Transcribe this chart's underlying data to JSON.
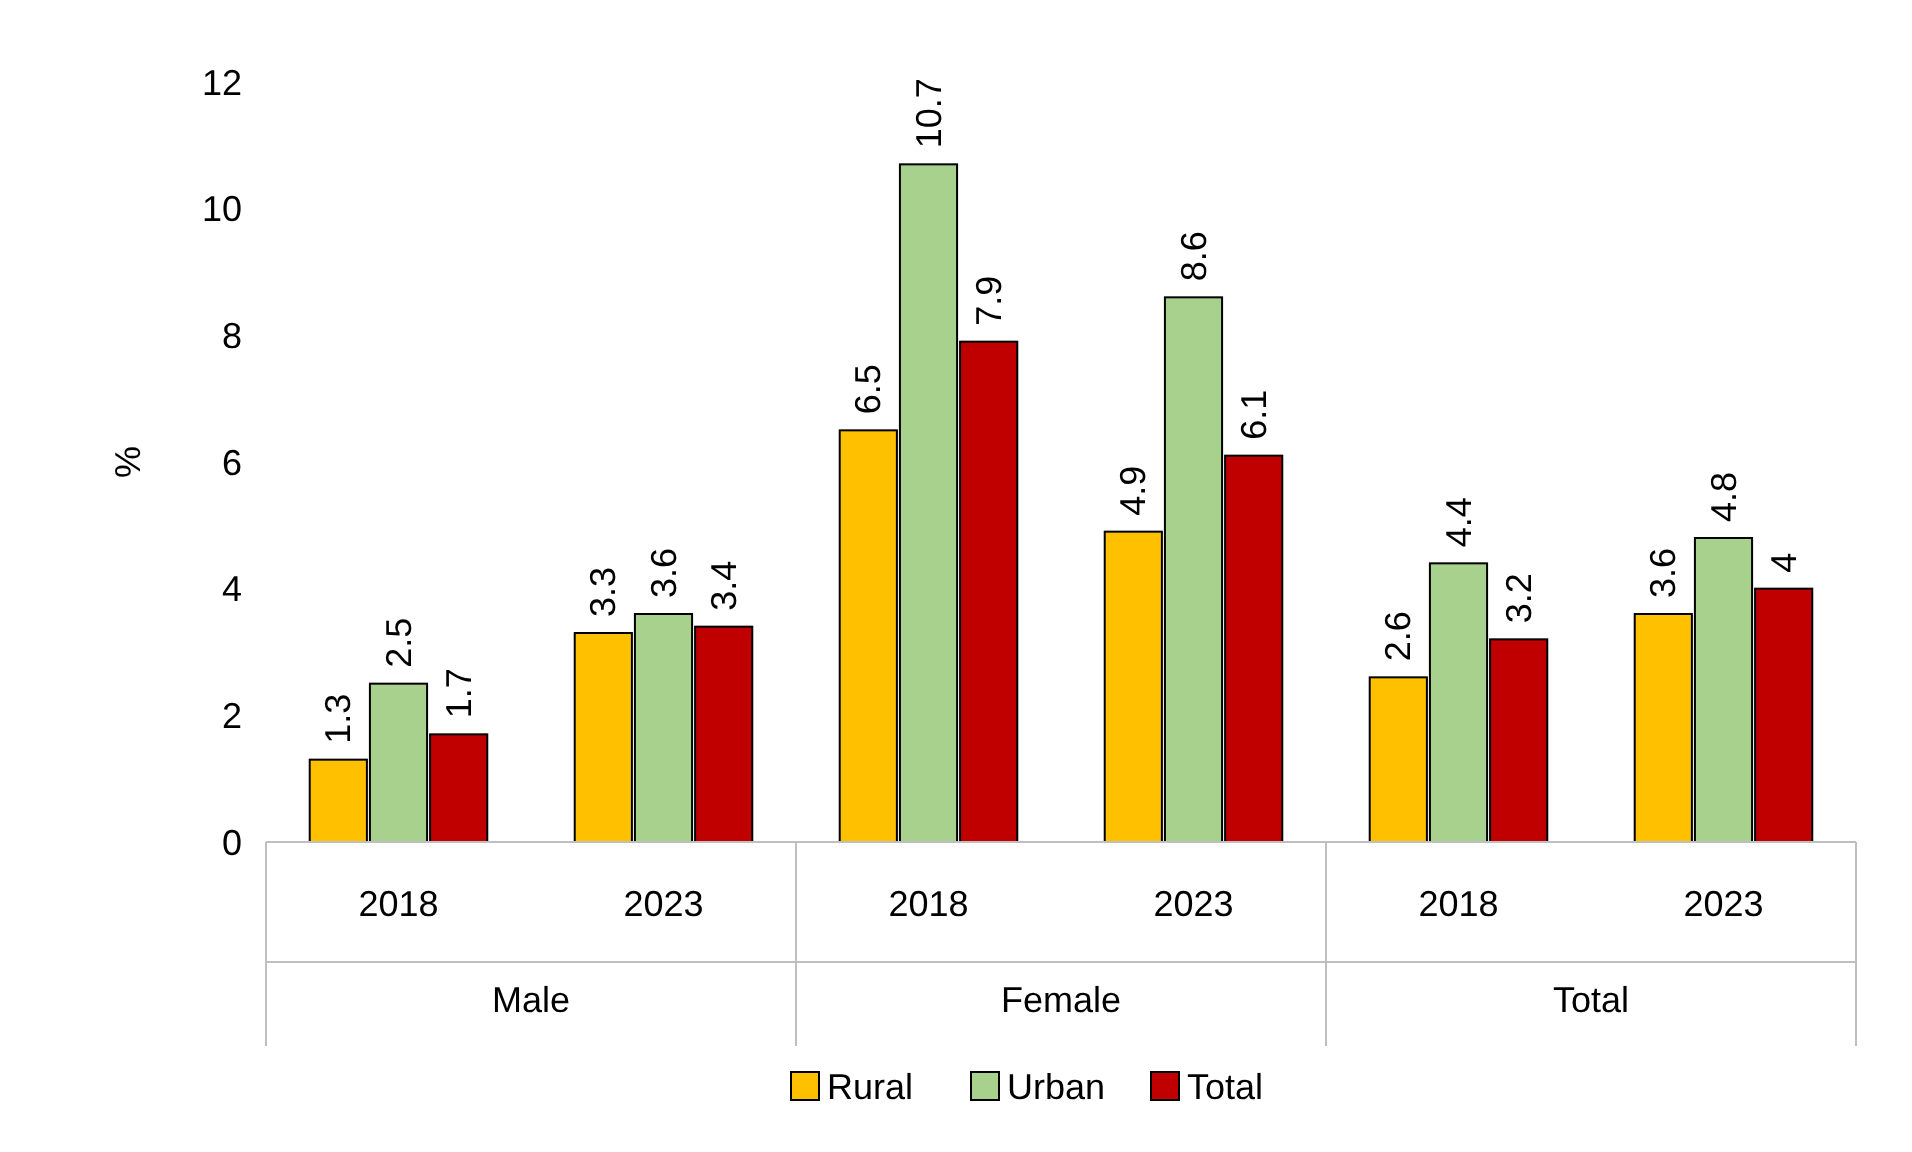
{
  "chart_data": {
    "type": "bar",
    "ylabel": "%",
    "categories": [
      "2018",
      "2023",
      "2018",
      "2023",
      "2018",
      "2023"
    ],
    "annotations": [
      "Male",
      "Female",
      "Total"
    ],
    "series": [
      {
        "name": "Rural",
        "color": "#ffc000",
        "values": [
          1.3,
          3.3,
          6.5,
          4.9,
          2.6,
          3.6
        ]
      },
      {
        "name": "Urban",
        "color": "#a9d18e",
        "values": [
          2.5,
          3.6,
          10.7,
          8.6,
          4.4,
          4.8
        ]
      },
      {
        "name": "Total",
        "color": "#c00000",
        "values": [
          1.7,
          3.4,
          7.9,
          6.1,
          3.2,
          4
        ]
      }
    ],
    "ylim": [
      0,
      12
    ],
    "yticks": [
      0,
      2,
      4,
      6,
      8,
      10,
      12
    ],
    "data_labels": true,
    "grid": false,
    "legend": "bottom"
  }
}
